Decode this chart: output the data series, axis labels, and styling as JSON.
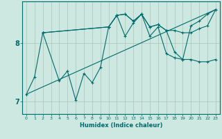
{
  "xlabel": "Humidex (Indice chaleur)",
  "background_color": "#cce8e0",
  "line_color": "#006b6b",
  "grid_color": "#b0c8c0",
  "xlim": [
    -0.5,
    23.5
  ],
  "ylim": [
    6.78,
    8.72
  ],
  "yticks": [
    7,
    8
  ],
  "xticks": [
    0,
    1,
    2,
    3,
    4,
    5,
    6,
    7,
    8,
    9,
    10,
    11,
    12,
    13,
    14,
    15,
    16,
    17,
    18,
    19,
    20,
    21,
    22,
    23
  ],
  "series0": {
    "x": [
      0,
      1,
      2,
      4,
      5,
      6,
      7,
      8,
      9,
      10,
      11,
      12,
      13,
      14,
      15,
      16,
      17,
      18,
      19,
      20,
      21,
      22,
      23
    ],
    "y": [
      7.12,
      7.42,
      8.18,
      7.35,
      7.52,
      7.02,
      7.48,
      7.32,
      7.58,
      8.28,
      8.48,
      8.12,
      8.35,
      8.5,
      8.12,
      8.28,
      7.82,
      7.75,
      7.72,
      8.3,
      8.38,
      8.5,
      8.58
    ]
  },
  "series1": {
    "x": [
      2,
      10,
      11,
      12,
      13,
      14,
      15,
      16,
      17,
      18,
      19,
      20,
      21,
      22,
      23
    ],
    "y": [
      8.18,
      8.28,
      8.48,
      8.5,
      8.38,
      8.5,
      8.28,
      8.32,
      8.22,
      8.22,
      8.18,
      8.18,
      8.25,
      8.3,
      8.58
    ]
  },
  "series2": {
    "x": [
      2,
      10,
      11,
      12,
      13,
      14,
      15,
      16,
      17,
      18,
      19,
      20,
      21,
      22,
      23
    ],
    "y": [
      8.18,
      8.28,
      8.48,
      8.5,
      8.38,
      8.5,
      8.28,
      8.32,
      8.22,
      7.85,
      7.72,
      7.72,
      7.68,
      7.68,
      7.72
    ]
  },
  "series3": {
    "x": [
      0,
      23
    ],
    "y": [
      7.12,
      8.58
    ]
  }
}
